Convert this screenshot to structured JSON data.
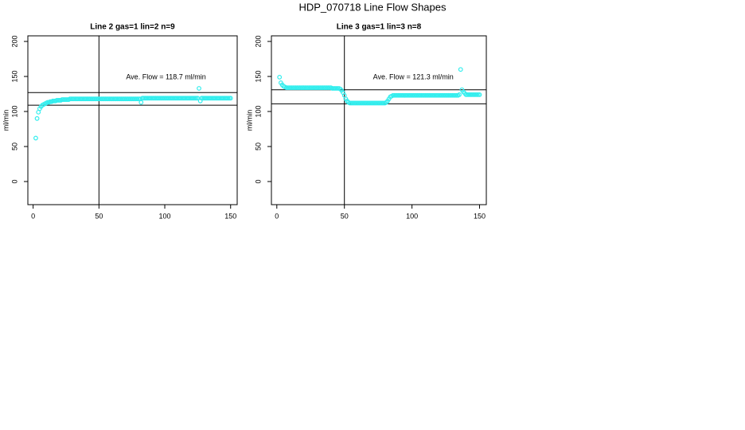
{
  "title": "HDP_070718  Line Flow Shapes",
  "chart_data": [
    {
      "type": "scatter",
      "title": "Line 2 gas=1 lin=2 n=9",
      "y_label": "ml/min",
      "annotation": "Ave. Flow =  118.7  ml/min",
      "xlim": [
        -4,
        155
      ],
      "ylim": [
        -33,
        208
      ],
      "xticks": [
        0,
        50,
        100,
        150
      ],
      "yticks": [
        0,
        50,
        100,
        150,
        200
      ],
      "hlines": [
        127,
        109
      ],
      "vlines": [
        50
      ],
      "color": "#33eeee",
      "x": [
        2,
        3,
        4,
        5,
        6,
        7,
        8,
        9,
        10,
        11,
        12,
        13,
        14,
        15,
        16,
        17,
        18,
        19,
        20,
        21,
        22,
        23,
        24,
        25,
        26,
        27,
        28,
        29,
        30,
        31,
        32,
        33,
        34,
        35,
        36,
        37,
        38,
        39,
        40,
        41,
        42,
        43,
        44,
        45,
        46,
        47,
        48,
        49,
        50,
        51,
        52,
        53,
        54,
        55,
        56,
        57,
        58,
        59,
        60,
        61,
        62,
        63,
        64,
        65,
        66,
        67,
        68,
        69,
        70,
        71,
        72,
        73,
        74,
        75,
        76,
        77,
        78,
        79,
        80,
        81,
        82,
        83,
        84,
        85,
        86,
        87,
        88,
        89,
        90,
        91,
        92,
        93,
        94,
        95,
        96,
        97,
        98,
        99,
        100,
        101,
        102,
        103,
        104,
        105,
        106,
        107,
        108,
        109,
        110,
        111,
        112,
        113,
        114,
        115,
        116,
        117,
        118,
        119,
        120,
        121,
        122,
        123,
        124,
        125,
        126,
        127,
        128,
        129,
        130,
        131,
        132,
        133,
        134,
        135,
        136,
        137,
        138,
        139,
        140,
        141,
        142,
        143,
        144,
        145,
        146,
        147,
        148,
        149,
        150
      ],
      "values": [
        62,
        90,
        99,
        104,
        107,
        109,
        110,
        111,
        112,
        113,
        113,
        114,
        114,
        115,
        115,
        115,
        116,
        116,
        116,
        116,
        117,
        117,
        117,
        117,
        117,
        117,
        118,
        118,
        118,
        118,
        118,
        118,
        118,
        118,
        118,
        118,
        118,
        118,
        118,
        118,
        118,
        118,
        118,
        118,
        118,
        118,
        118,
        118,
        118,
        118,
        118,
        118,
        118,
        118,
        118,
        118,
        118,
        118,
        118,
        118,
        118,
        118,
        118,
        118,
        118,
        118,
        118,
        118,
        118,
        118,
        118,
        118,
        118,
        118,
        118,
        118,
        118,
        118,
        118,
        118,
        113,
        119,
        119,
        119,
        119,
        119,
        119,
        119,
        119,
        119,
        119,
        119,
        119,
        119,
        119,
        119,
        119,
        119,
        119,
        119,
        119,
        119,
        119,
        119,
        119,
        119,
        119,
        119,
        119,
        119,
        119,
        119,
        119,
        119,
        119,
        119,
        119,
        119,
        119,
        119,
        119,
        119,
        119,
        119,
        133,
        115,
        119,
        119,
        119,
        119,
        119,
        119,
        119,
        119,
        119,
        119,
        119,
        119,
        119,
        119,
        119,
        119,
        119,
        119,
        119,
        119,
        119,
        119,
        119
      ]
    },
    {
      "type": "scatter",
      "title": "Line 3 gas=1 lin=3 n=8",
      "y_label": "ml/min",
      "annotation": "Ave. Flow =  121.3  ml/min",
      "xlim": [
        -4,
        155
      ],
      "ylim": [
        -33,
        208
      ],
      "xticks": [
        0,
        50,
        100,
        150
      ],
      "yticks": [
        0,
        50,
        100,
        150,
        200
      ],
      "hlines": [
        131,
        111
      ],
      "vlines": [
        50
      ],
      "color": "#33eeee",
      "x": [
        2,
        3,
        4,
        5,
        6,
        7,
        8,
        9,
        10,
        11,
        12,
        13,
        14,
        15,
        16,
        17,
        18,
        19,
        20,
        21,
        22,
        23,
        24,
        25,
        26,
        27,
        28,
        29,
        30,
        31,
        32,
        33,
        34,
        35,
        36,
        37,
        38,
        39,
        40,
        41,
        42,
        43,
        44,
        45,
        46,
        47,
        48,
        49,
        50,
        51,
        52,
        53,
        54,
        55,
        56,
        57,
        58,
        59,
        60,
        61,
        62,
        63,
        64,
        65,
        66,
        67,
        68,
        69,
        70,
        71,
        72,
        73,
        74,
        75,
        76,
        77,
        78,
        79,
        80,
        81,
        82,
        83,
        84,
        85,
        86,
        87,
        88,
        89,
        90,
        91,
        92,
        93,
        94,
        95,
        96,
        97,
        98,
        99,
        100,
        101,
        102,
        103,
        104,
        105,
        106,
        107,
        108,
        109,
        110,
        111,
        112,
        113,
        114,
        115,
        116,
        117,
        118,
        119,
        120,
        121,
        122,
        123,
        124,
        125,
        126,
        127,
        128,
        129,
        130,
        131,
        132,
        133,
        134,
        135,
        136,
        137,
        138,
        139,
        140,
        141,
        142,
        143,
        144,
        145,
        146,
        147,
        148,
        149,
        150
      ],
      "values": [
        149,
        141,
        138,
        136,
        135,
        134,
        134,
        134,
        134,
        134,
        134,
        134,
        134,
        134,
        134,
        134,
        134,
        134,
        134,
        134,
        134,
        134,
        134,
        134,
        134,
        134,
        134,
        134,
        134,
        134,
        134,
        134,
        134,
        134,
        134,
        134,
        134,
        134,
        134,
        133,
        133,
        133,
        133,
        133,
        133,
        132,
        130,
        127,
        123,
        118,
        115,
        113,
        112,
        112,
        112,
        112,
        112,
        112,
        112,
        112,
        112,
        112,
        112,
        112,
        112,
        112,
        112,
        112,
        112,
        112,
        112,
        112,
        112,
        112,
        112,
        112,
        112,
        112,
        112,
        113,
        115,
        118,
        121,
        122,
        123,
        123,
        123,
        123,
        123,
        123,
        123,
        123,
        123,
        123,
        123,
        123,
        123,
        123,
        123,
        123,
        123,
        123,
        123,
        123,
        123,
        123,
        123,
        123,
        123,
        123,
        123,
        123,
        123,
        123,
        123,
        123,
        123,
        123,
        123,
        123,
        123,
        123,
        123,
        123,
        123,
        123,
        123,
        123,
        123,
        123,
        123,
        123,
        123,
        124,
        160,
        131,
        128,
        126,
        124,
        124,
        124,
        124,
        124,
        124,
        124,
        124,
        124,
        124,
        124
      ]
    }
  ]
}
